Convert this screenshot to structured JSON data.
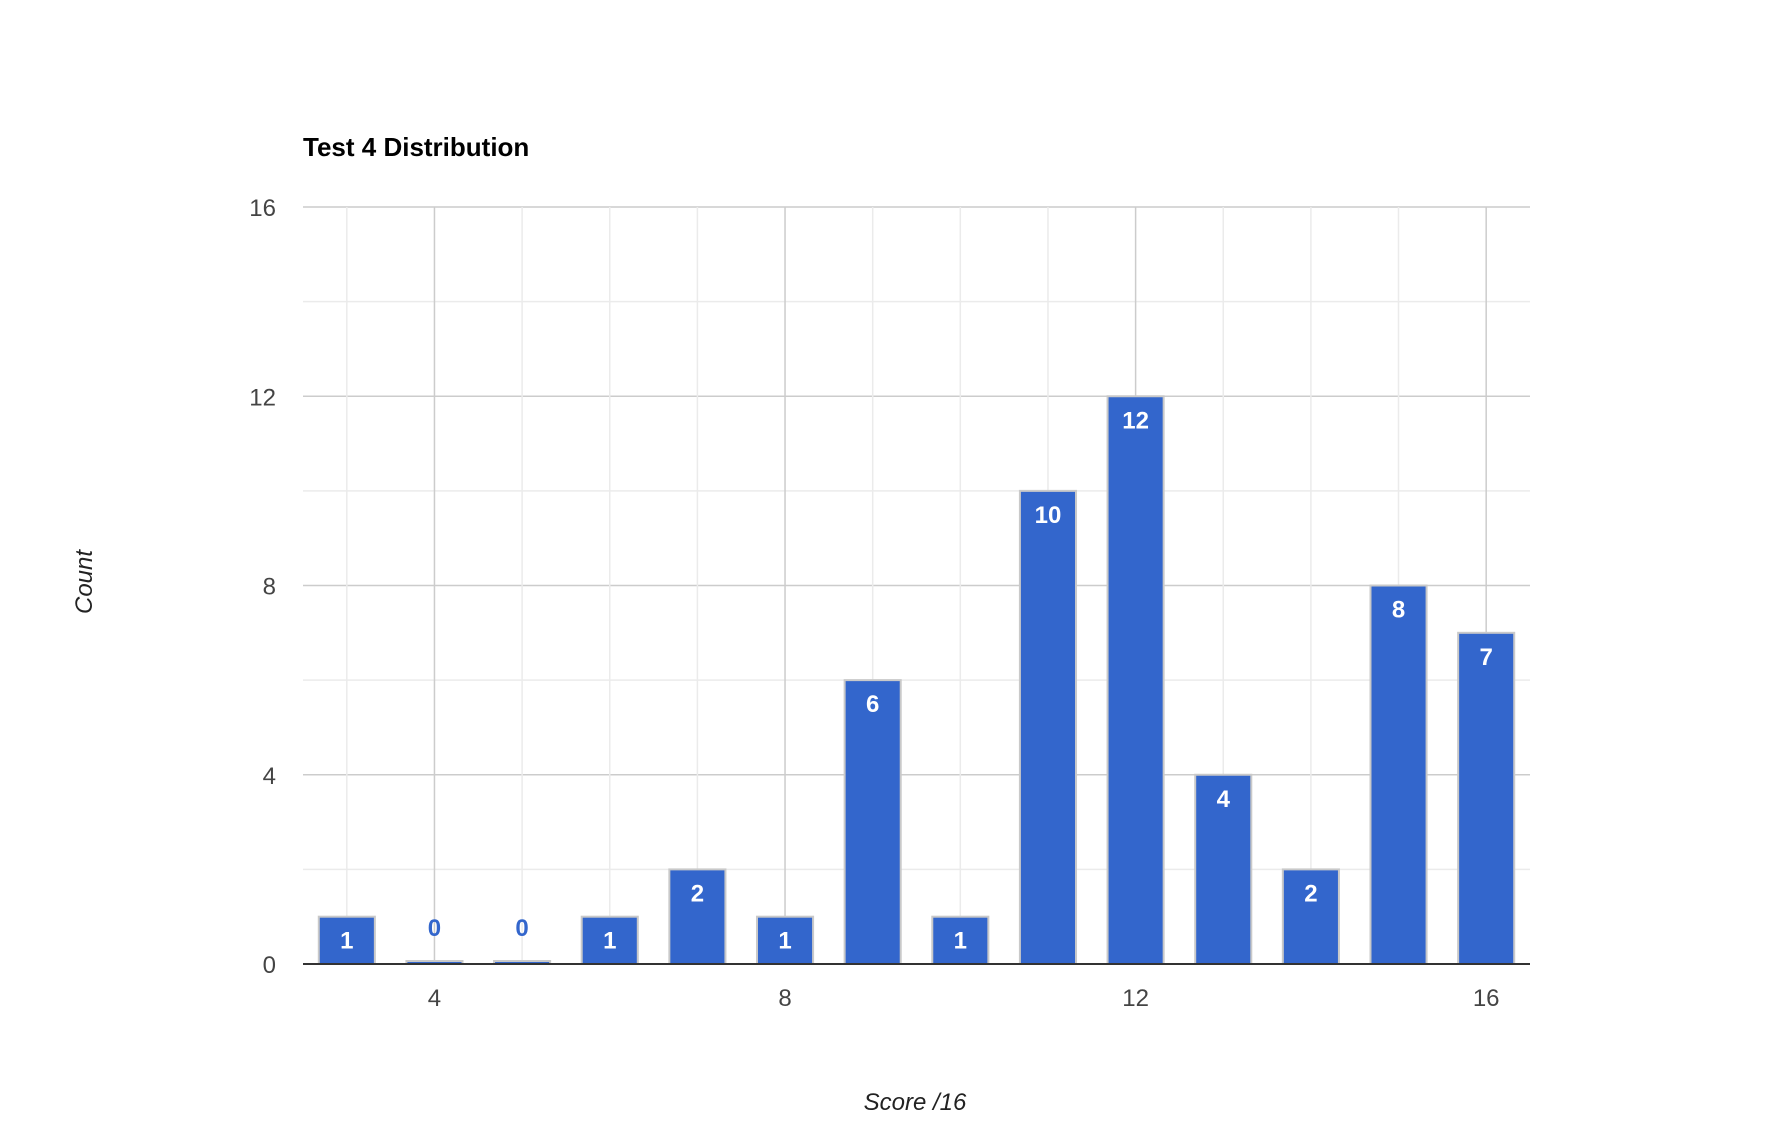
{
  "chart_data": {
    "type": "bar",
    "title": "Test 4 Distribution",
    "xlabel": "Score /16",
    "ylabel": "Count",
    "x": [
      3,
      4,
      5,
      6,
      7,
      8,
      9,
      10,
      11,
      12,
      13,
      14,
      15,
      16
    ],
    "values": [
      1,
      0,
      0,
      1,
      2,
      1,
      6,
      1,
      10,
      12,
      4,
      2,
      8,
      7
    ],
    "xlim": [
      2.5,
      16.5
    ],
    "ylim": [
      0,
      16
    ],
    "x_ticks": [
      4,
      8,
      12,
      16
    ],
    "y_ticks": [
      0,
      4,
      8,
      12,
      16
    ],
    "grid": true,
    "data_labels": true,
    "colors": {
      "bar": "#3366cc",
      "label_inside": "#ffffff",
      "label_outside": "#3366cc",
      "grid_major": "#cccccc",
      "grid_minor": "#ebebeb",
      "axis": "#333333"
    }
  }
}
